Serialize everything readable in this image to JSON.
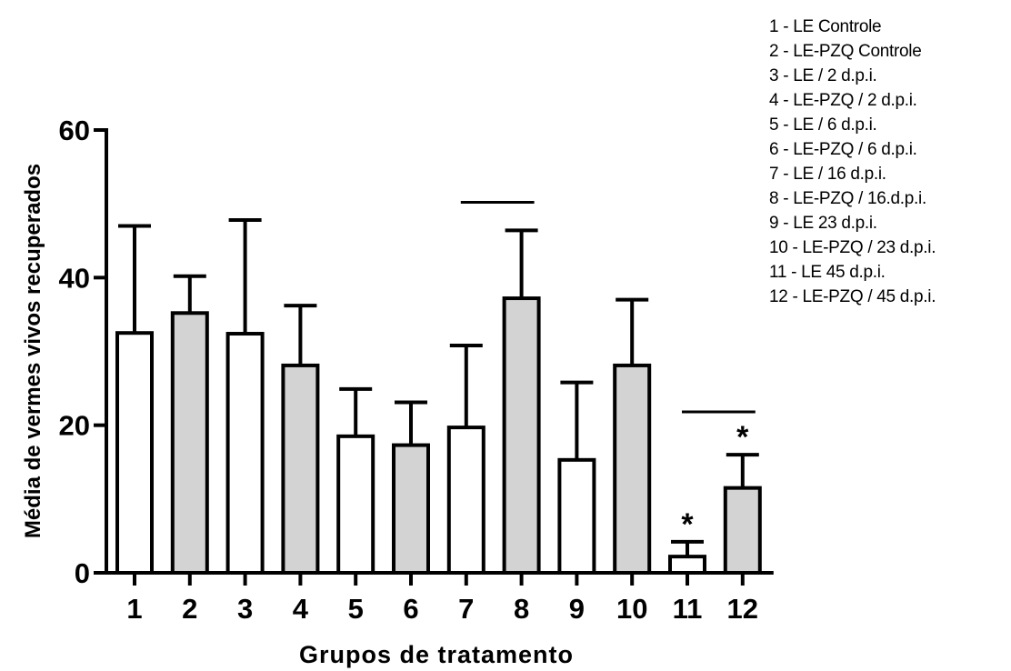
{
  "chart_data": {
    "type": "bar",
    "xlabel": "Grupos de tratamento",
    "ylabel": "Média de vermes vivos  recuperados",
    "ylim": [
      0,
      60
    ],
    "yticks": [
      0,
      20,
      40,
      60
    ],
    "categories": [
      "1",
      "2",
      "3",
      "4",
      "5",
      "6",
      "7",
      "8",
      "9",
      "10",
      "11",
      "12"
    ],
    "values": [
      32.5,
      35.2,
      32.4,
      28.1,
      18.5,
      17.3,
      19.7,
      37.2,
      15.3,
      28.1,
      2.2,
      11.5
    ],
    "error_upper": [
      47.0,
      40.2,
      47.8,
      36.2,
      24.9,
      23.1,
      30.8,
      46.4,
      25.8,
      37.0,
      4.2,
      16.0
    ],
    "bar_fills": [
      "#ffffff",
      "#d3d3d3",
      "#ffffff",
      "#d3d3d3",
      "#ffffff",
      "#d3d3d3",
      "#ffffff",
      "#d3d3d3",
      "#ffffff",
      "#d3d3d3",
      "#ffffff",
      "#d3d3d3"
    ],
    "significance_markers": [
      {
        "category": "11",
        "symbol": "*"
      },
      {
        "category": "12",
        "symbol": "*"
      }
    ],
    "comparison_lines": [
      {
        "from": "7",
        "to": "8",
        "y": 50.2
      },
      {
        "from": "11",
        "to": "12",
        "y": 21.8
      }
    ],
    "legend": {
      "placement": "top-right",
      "entries": [
        "1 - LE Controle",
        "2 - LE-PZQ Controle",
        "3 - LE / 2 d.p.i.",
        "4 - LE-PZQ / 2 d.p.i.",
        "5 - LE / 6 d.p.i.",
        "6 - LE-PZQ / 6 d.p.i.",
        "7 - LE / 16 d.p.i.",
        "8 - LE-PZQ / 16.d.p.i.",
        "9 - LE 23 d.p.i.",
        "10 - LE-PZQ / 23 d.p.i.",
        "11 - LE 45 d.p.i.",
        "12 - LE-PZQ  / 45 d.p.i."
      ]
    }
  }
}
